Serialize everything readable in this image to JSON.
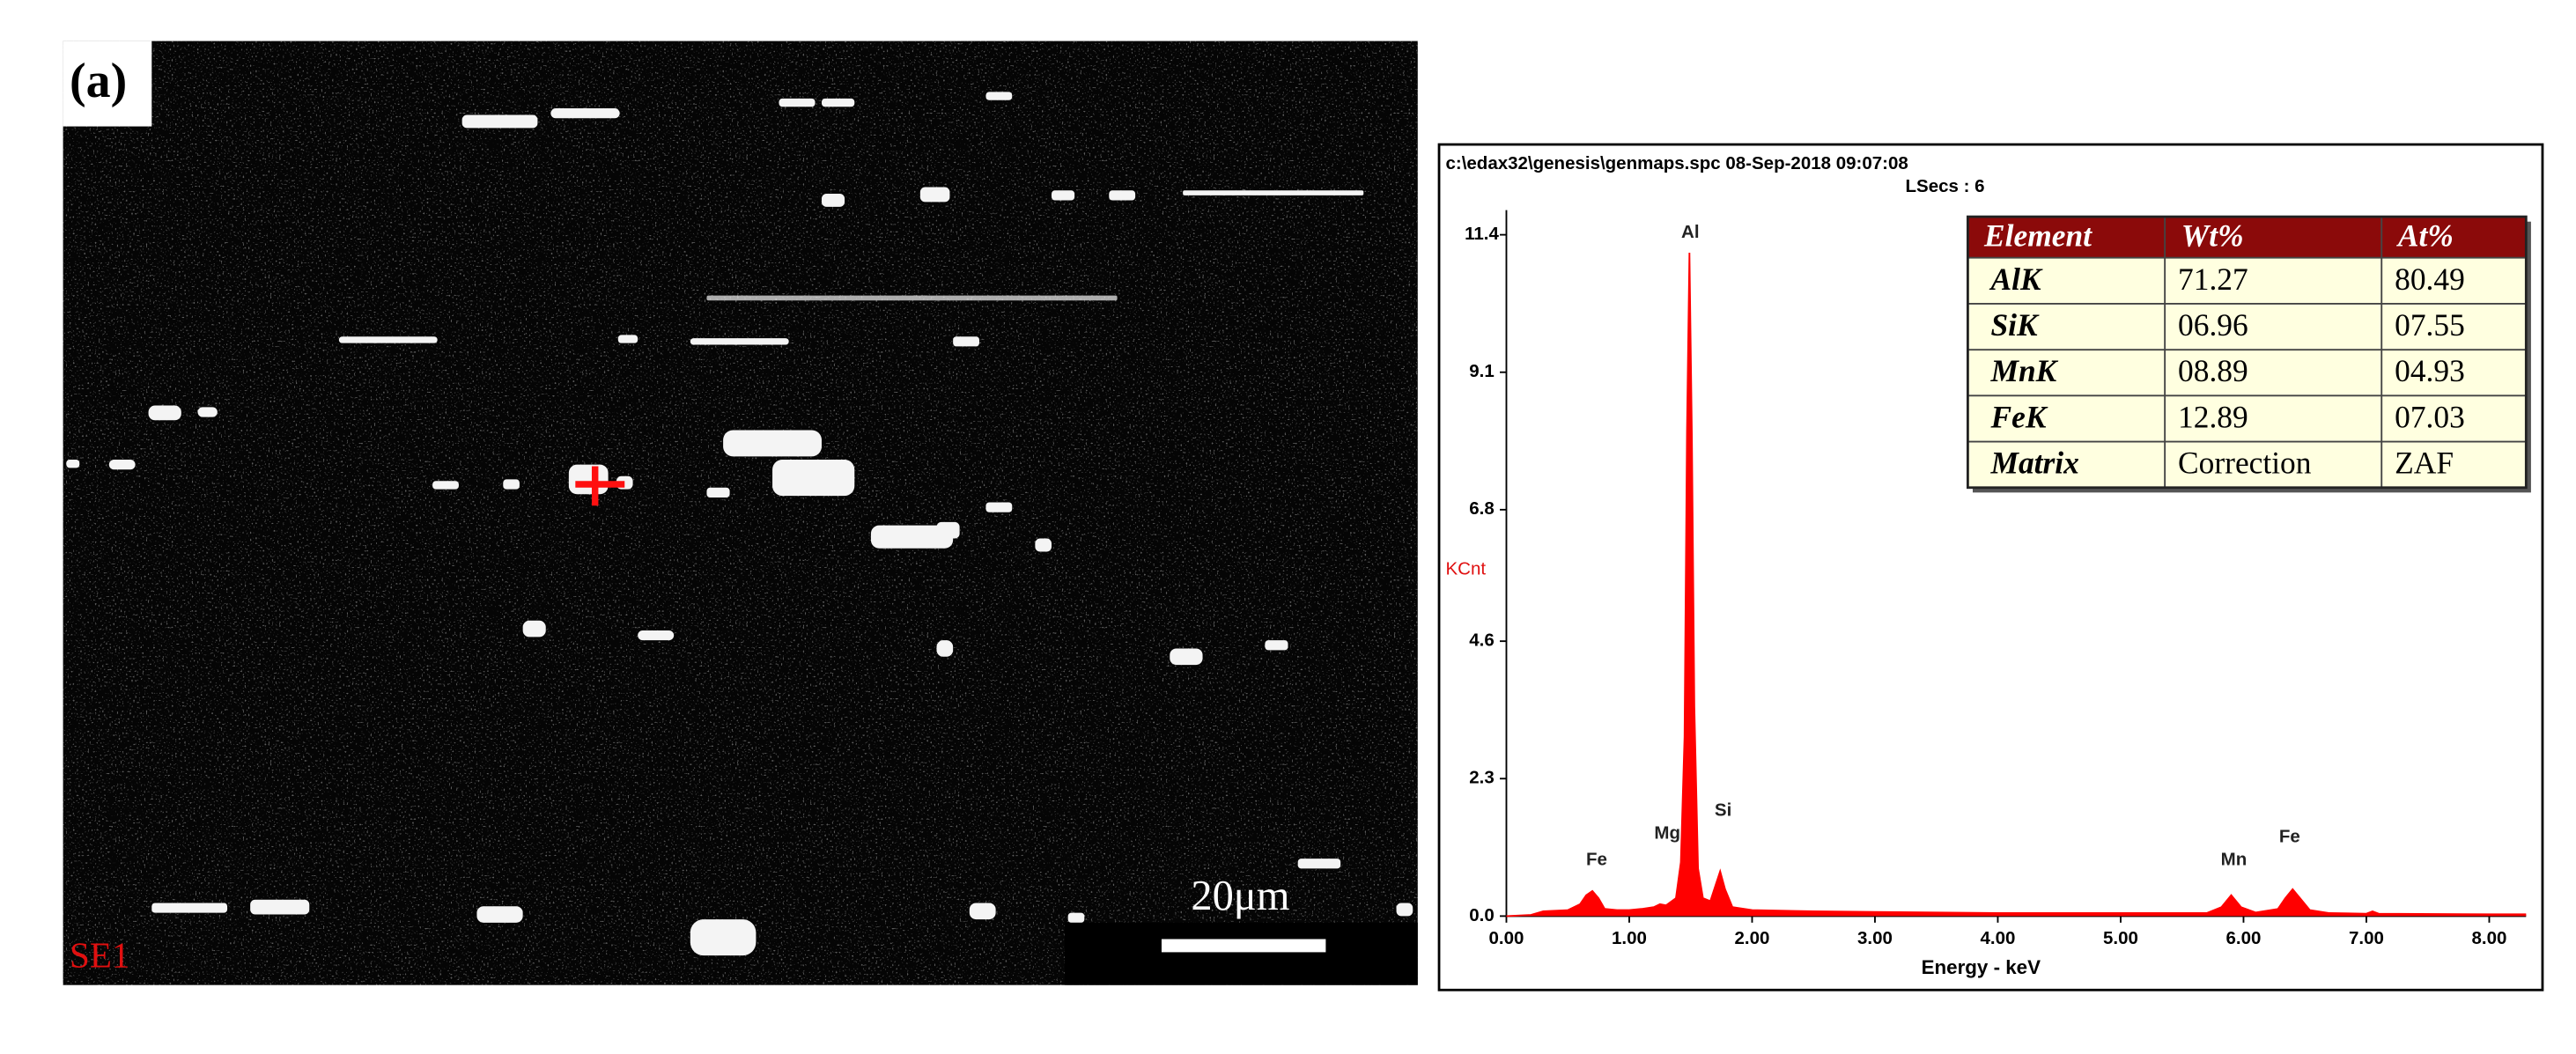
{
  "sem_panel": {
    "panel_label": "(a)",
    "scale_bar": "20μm",
    "detector": "SE1"
  },
  "chart_data": {
    "type": "area",
    "header": "c:\\edax32\\genesis\\genmaps.spc  08-Sep-2018 09:07:08",
    "subheader": "LSecs : 6",
    "x_label": "Energy - keV",
    "y_label": "KCnt",
    "color": "#ff0000",
    "x": [
      0.0,
      0.2,
      0.3,
      0.5,
      0.6,
      0.65,
      0.7,
      0.75,
      0.8,
      0.9,
      1.0,
      1.1,
      1.2,
      1.25,
      1.3,
      1.38,
      1.42,
      1.45,
      1.47,
      1.49,
      1.51,
      1.53,
      1.56,
      1.6,
      1.66,
      1.7,
      1.74,
      1.78,
      1.84,
      2.0,
      2.5,
      3.0,
      4.0,
      5.0,
      5.7,
      5.82,
      5.9,
      5.98,
      6.1,
      6.28,
      6.34,
      6.4,
      6.46,
      6.54,
      6.7,
      7.0,
      7.05,
      7.1,
      8.0,
      8.3
    ],
    "values": [
      0.0,
      0.02,
      0.08,
      0.1,
      0.2,
      0.35,
      0.42,
      0.3,
      0.12,
      0.1,
      0.1,
      0.12,
      0.15,
      0.2,
      0.18,
      0.3,
      0.9,
      3.0,
      8.1,
      11.1,
      8.0,
      3.5,
      0.8,
      0.3,
      0.25,
      0.5,
      0.75,
      0.45,
      0.15,
      0.1,
      0.08,
      0.07,
      0.05,
      0.05,
      0.05,
      0.15,
      0.35,
      0.15,
      0.06,
      0.12,
      0.3,
      0.45,
      0.3,
      0.1,
      0.05,
      0.04,
      0.08,
      0.04,
      0.03,
      0.03
    ],
    "xlim": [
      0,
      8.3
    ],
    "ylim": [
      0,
      11.4
    ],
    "xticks": [
      {
        "value": 0,
        "label": "0.00"
      },
      {
        "value": 1,
        "label": "1.00"
      },
      {
        "value": 2,
        "label": "2.00"
      },
      {
        "value": 3,
        "label": "3.00"
      },
      {
        "value": 4,
        "label": "4.00"
      },
      {
        "value": 5,
        "label": "5.00"
      },
      {
        "value": 6,
        "label": "6.00"
      },
      {
        "value": 7,
        "label": "7.00"
      },
      {
        "value": 8,
        "label": "8.00"
      }
    ],
    "yticks": [
      {
        "value": 0,
        "label": "0.0"
      },
      2.3,
      4.6,
      6.8,
      9.1,
      11.4
    ],
    "peak_labels": [
      "Fe",
      "Mg",
      "Al",
      "Si",
      "Mn",
      "Fe"
    ]
  },
  "table": {
    "header": [
      "Element",
      "Wt%",
      "At%"
    ],
    "rows": [
      [
        "AlK",
        "71.27",
        "80.49"
      ],
      [
        "SiK",
        "06.96",
        "07.55"
      ],
      [
        "MnK",
        "08.89",
        "04.93"
      ],
      [
        "FeK",
        "12.89",
        "07.03"
      ],
      [
        "Matrix",
        "Correction",
        "ZAF"
      ]
    ]
  }
}
